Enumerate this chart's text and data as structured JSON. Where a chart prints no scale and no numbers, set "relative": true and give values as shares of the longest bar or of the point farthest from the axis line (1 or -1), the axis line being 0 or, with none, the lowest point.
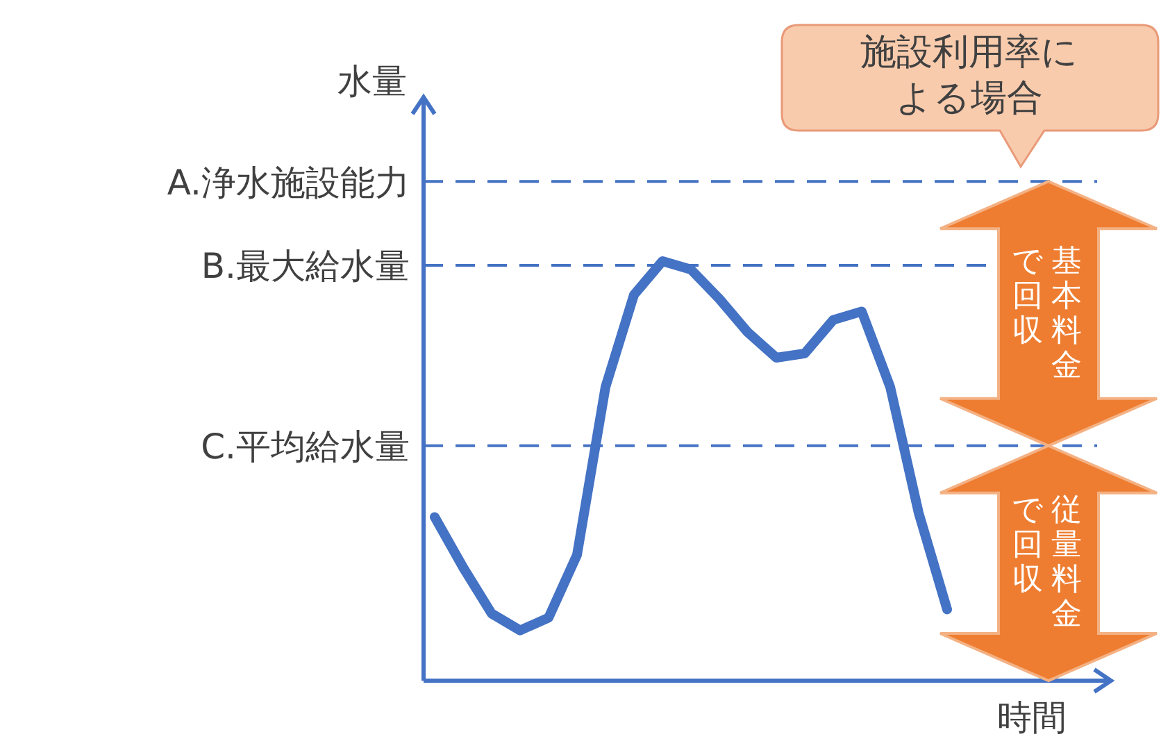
{
  "chart_data": {
    "type": "line",
    "relative": true,
    "ylabel": "水量",
    "xlabel": "時間",
    "categories": [
      null,
      null,
      null,
      null,
      null,
      null,
      null,
      null,
      null,
      null,
      null,
      null,
      null,
      null,
      null,
      null,
      null,
      null,
      null
    ],
    "series": [
      {
        "color": "#4472c4",
        "values": [
          0.39,
          0.27,
          0.16,
          0.12,
          0.15,
          0.3,
          0.7,
          0.92,
          1.0,
          0.98,
          0.91,
          0.83,
          0.77,
          0.78,
          0.86,
          0.88,
          0.7,
          0.4,
          0.17
        ]
      }
    ],
    "ref_lines": [
      {
        "axis": "y",
        "value": 1.19,
        "label": "A.浄水施設能力",
        "color": "#4472c4",
        "line_style": "dashed"
      },
      {
        "axis": "y",
        "value": 0.99,
        "label": "B.最大給水量",
        "color": "#4472c4",
        "line_style": "dashed"
      },
      {
        "axis": "y",
        "value": 0.56,
        "label": "C.平均給水量",
        "color": "#4472c4",
        "line_style": "dashed"
      }
    ],
    "annotations": [
      "施設利用率による場合",
      "基本料金で回収",
      "従量料金で回収"
    ]
  }
}
